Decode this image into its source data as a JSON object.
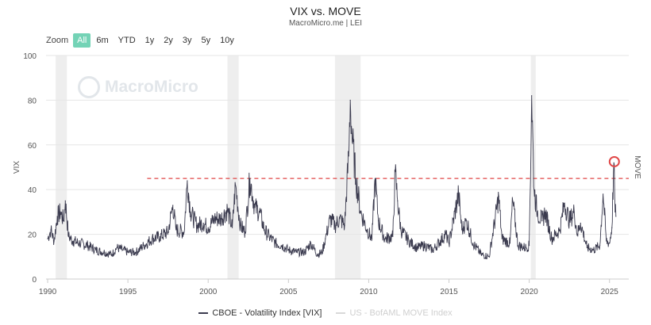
{
  "header": {
    "title": "VIX vs. MOVE",
    "subtitle": "MacroMicro.me | LEI"
  },
  "zoom": {
    "label": "Zoom",
    "options": [
      "All",
      "6m",
      "YTD",
      "1y",
      "2y",
      "3y",
      "5y",
      "10y"
    ],
    "selected": "All"
  },
  "watermark": "MacroMicro",
  "legend": [
    {
      "label": "CBOE - Volatility Index [VIX]",
      "active": true,
      "color": "#3b3b4f"
    },
    {
      "label": "US - BofAML MOVE Index",
      "active": false,
      "color": "#d8d8d8"
    }
  ],
  "chart_data": {
    "type": "line",
    "x_ticks": [
      1990,
      1995,
      2000,
      2005,
      2010,
      2015,
      2020,
      2025
    ],
    "xlim": [
      1989.9,
      2026.2
    ],
    "y_ticks": [
      0,
      20,
      40,
      60,
      80,
      100
    ],
    "ylim": [
      0,
      100
    ],
    "ylabel": "VIX",
    "y2label": "MOVE",
    "grid": "horizontal",
    "recession_bands": [
      [
        1990.5,
        1991.2
      ],
      [
        2001.2,
        2001.9
      ],
      [
        2007.9,
        2009.5
      ],
      [
        2020.1,
        2020.4
      ]
    ],
    "reference_line": {
      "y": 45,
      "x_start": 1996.2,
      "color": "#e04646",
      "style": "dashed"
    },
    "highlight_marker": {
      "x": 2025.3,
      "y": 52.5,
      "color": "#e04646"
    },
    "series": [
      {
        "name": "CBOE - Volatility Index [VIX]",
        "color": "#3b3b4f",
        "points": [
          [
            1990.0,
            18
          ],
          [
            1990.2,
            22
          ],
          [
            1990.4,
            17
          ],
          [
            1990.6,
            28
          ],
          [
            1990.8,
            30
          ],
          [
            1991.0,
            26
          ],
          [
            1991.1,
            35
          ],
          [
            1991.3,
            19
          ],
          [
            1991.6,
            17
          ],
          [
            1992.0,
            16
          ],
          [
            1992.5,
            15
          ],
          [
            1993.0,
            13
          ],
          [
            1993.5,
            12
          ],
          [
            1994.0,
            11
          ],
          [
            1994.3,
            14
          ],
          [
            1994.7,
            13
          ],
          [
            1995.0,
            12
          ],
          [
            1995.5,
            12
          ],
          [
            1996.0,
            15
          ],
          [
            1996.5,
            18
          ],
          [
            1997.0,
            19
          ],
          [
            1997.5,
            21
          ],
          [
            1997.8,
            33
          ],
          [
            1998.0,
            22
          ],
          [
            1998.5,
            21
          ],
          [
            1998.7,
            44
          ],
          [
            1998.9,
            30
          ],
          [
            1999.3,
            24
          ],
          [
            1999.7,
            25
          ],
          [
            2000.0,
            23
          ],
          [
            2000.4,
            27
          ],
          [
            2000.8,
            27
          ],
          [
            2001.2,
            31
          ],
          [
            2001.5,
            23
          ],
          [
            2001.7,
            42
          ],
          [
            2002.0,
            24
          ],
          [
            2002.3,
            21
          ],
          [
            2002.6,
            45
          ],
          [
            2002.9,
            32
          ],
          [
            2003.2,
            30
          ],
          [
            2003.5,
            22
          ],
          [
            2003.8,
            19
          ],
          [
            2004.2,
            16
          ],
          [
            2004.6,
            15
          ],
          [
            2005.0,
            13
          ],
          [
            2005.5,
            12
          ],
          [
            2006.0,
            12
          ],
          [
            2006.4,
            16
          ],
          [
            2006.8,
            11
          ],
          [
            2007.1,
            12
          ],
          [
            2007.3,
            18
          ],
          [
            2007.6,
            27
          ],
          [
            2007.9,
            24
          ],
          [
            2008.2,
            27
          ],
          [
            2008.5,
            24
          ],
          [
            2008.75,
            55
          ],
          [
            2008.85,
            80
          ],
          [
            2008.95,
            65
          ],
          [
            2009.2,
            45
          ],
          [
            2009.5,
            30
          ],
          [
            2009.9,
            22
          ],
          [
            2010.2,
            18
          ],
          [
            2010.4,
            45
          ],
          [
            2010.6,
            26
          ],
          [
            2011.0,
            18
          ],
          [
            2011.5,
            19
          ],
          [
            2011.65,
            48
          ],
          [
            2011.8,
            35
          ],
          [
            2012.0,
            22
          ],
          [
            2012.5,
            17
          ],
          [
            2013.0,
            14
          ],
          [
            2013.5,
            15
          ],
          [
            2014.0,
            13
          ],
          [
            2014.8,
            20
          ],
          [
            2015.0,
            16
          ],
          [
            2015.6,
            38
          ],
          [
            2015.8,
            22
          ],
          [
            2016.1,
            26
          ],
          [
            2016.5,
            16
          ],
          [
            2017.0,
            11
          ],
          [
            2017.5,
            10
          ],
          [
            2018.1,
            37
          ],
          [
            2018.3,
            18
          ],
          [
            2018.8,
            16
          ],
          [
            2018.97,
            35
          ],
          [
            2019.3,
            15
          ],
          [
            2019.8,
            14
          ],
          [
            2020.0,
            15
          ],
          [
            2020.15,
            82
          ],
          [
            2020.3,
            40
          ],
          [
            2020.5,
            30
          ],
          [
            2020.8,
            26
          ],
          [
            2021.0,
            30
          ],
          [
            2021.4,
            18
          ],
          [
            2021.9,
            22
          ],
          [
            2022.2,
            34
          ],
          [
            2022.5,
            26
          ],
          [
            2022.8,
            30
          ],
          [
            2023.0,
            20
          ],
          [
            2023.2,
            25
          ],
          [
            2023.6,
            14
          ],
          [
            2024.0,
            13
          ],
          [
            2024.4,
            15
          ],
          [
            2024.6,
            38
          ],
          [
            2024.8,
            17
          ],
          [
            2025.0,
            16
          ],
          [
            2025.15,
            23
          ],
          [
            2025.27,
            52
          ],
          [
            2025.35,
            30
          ],
          [
            2025.4,
            28
          ]
        ]
      }
    ]
  }
}
